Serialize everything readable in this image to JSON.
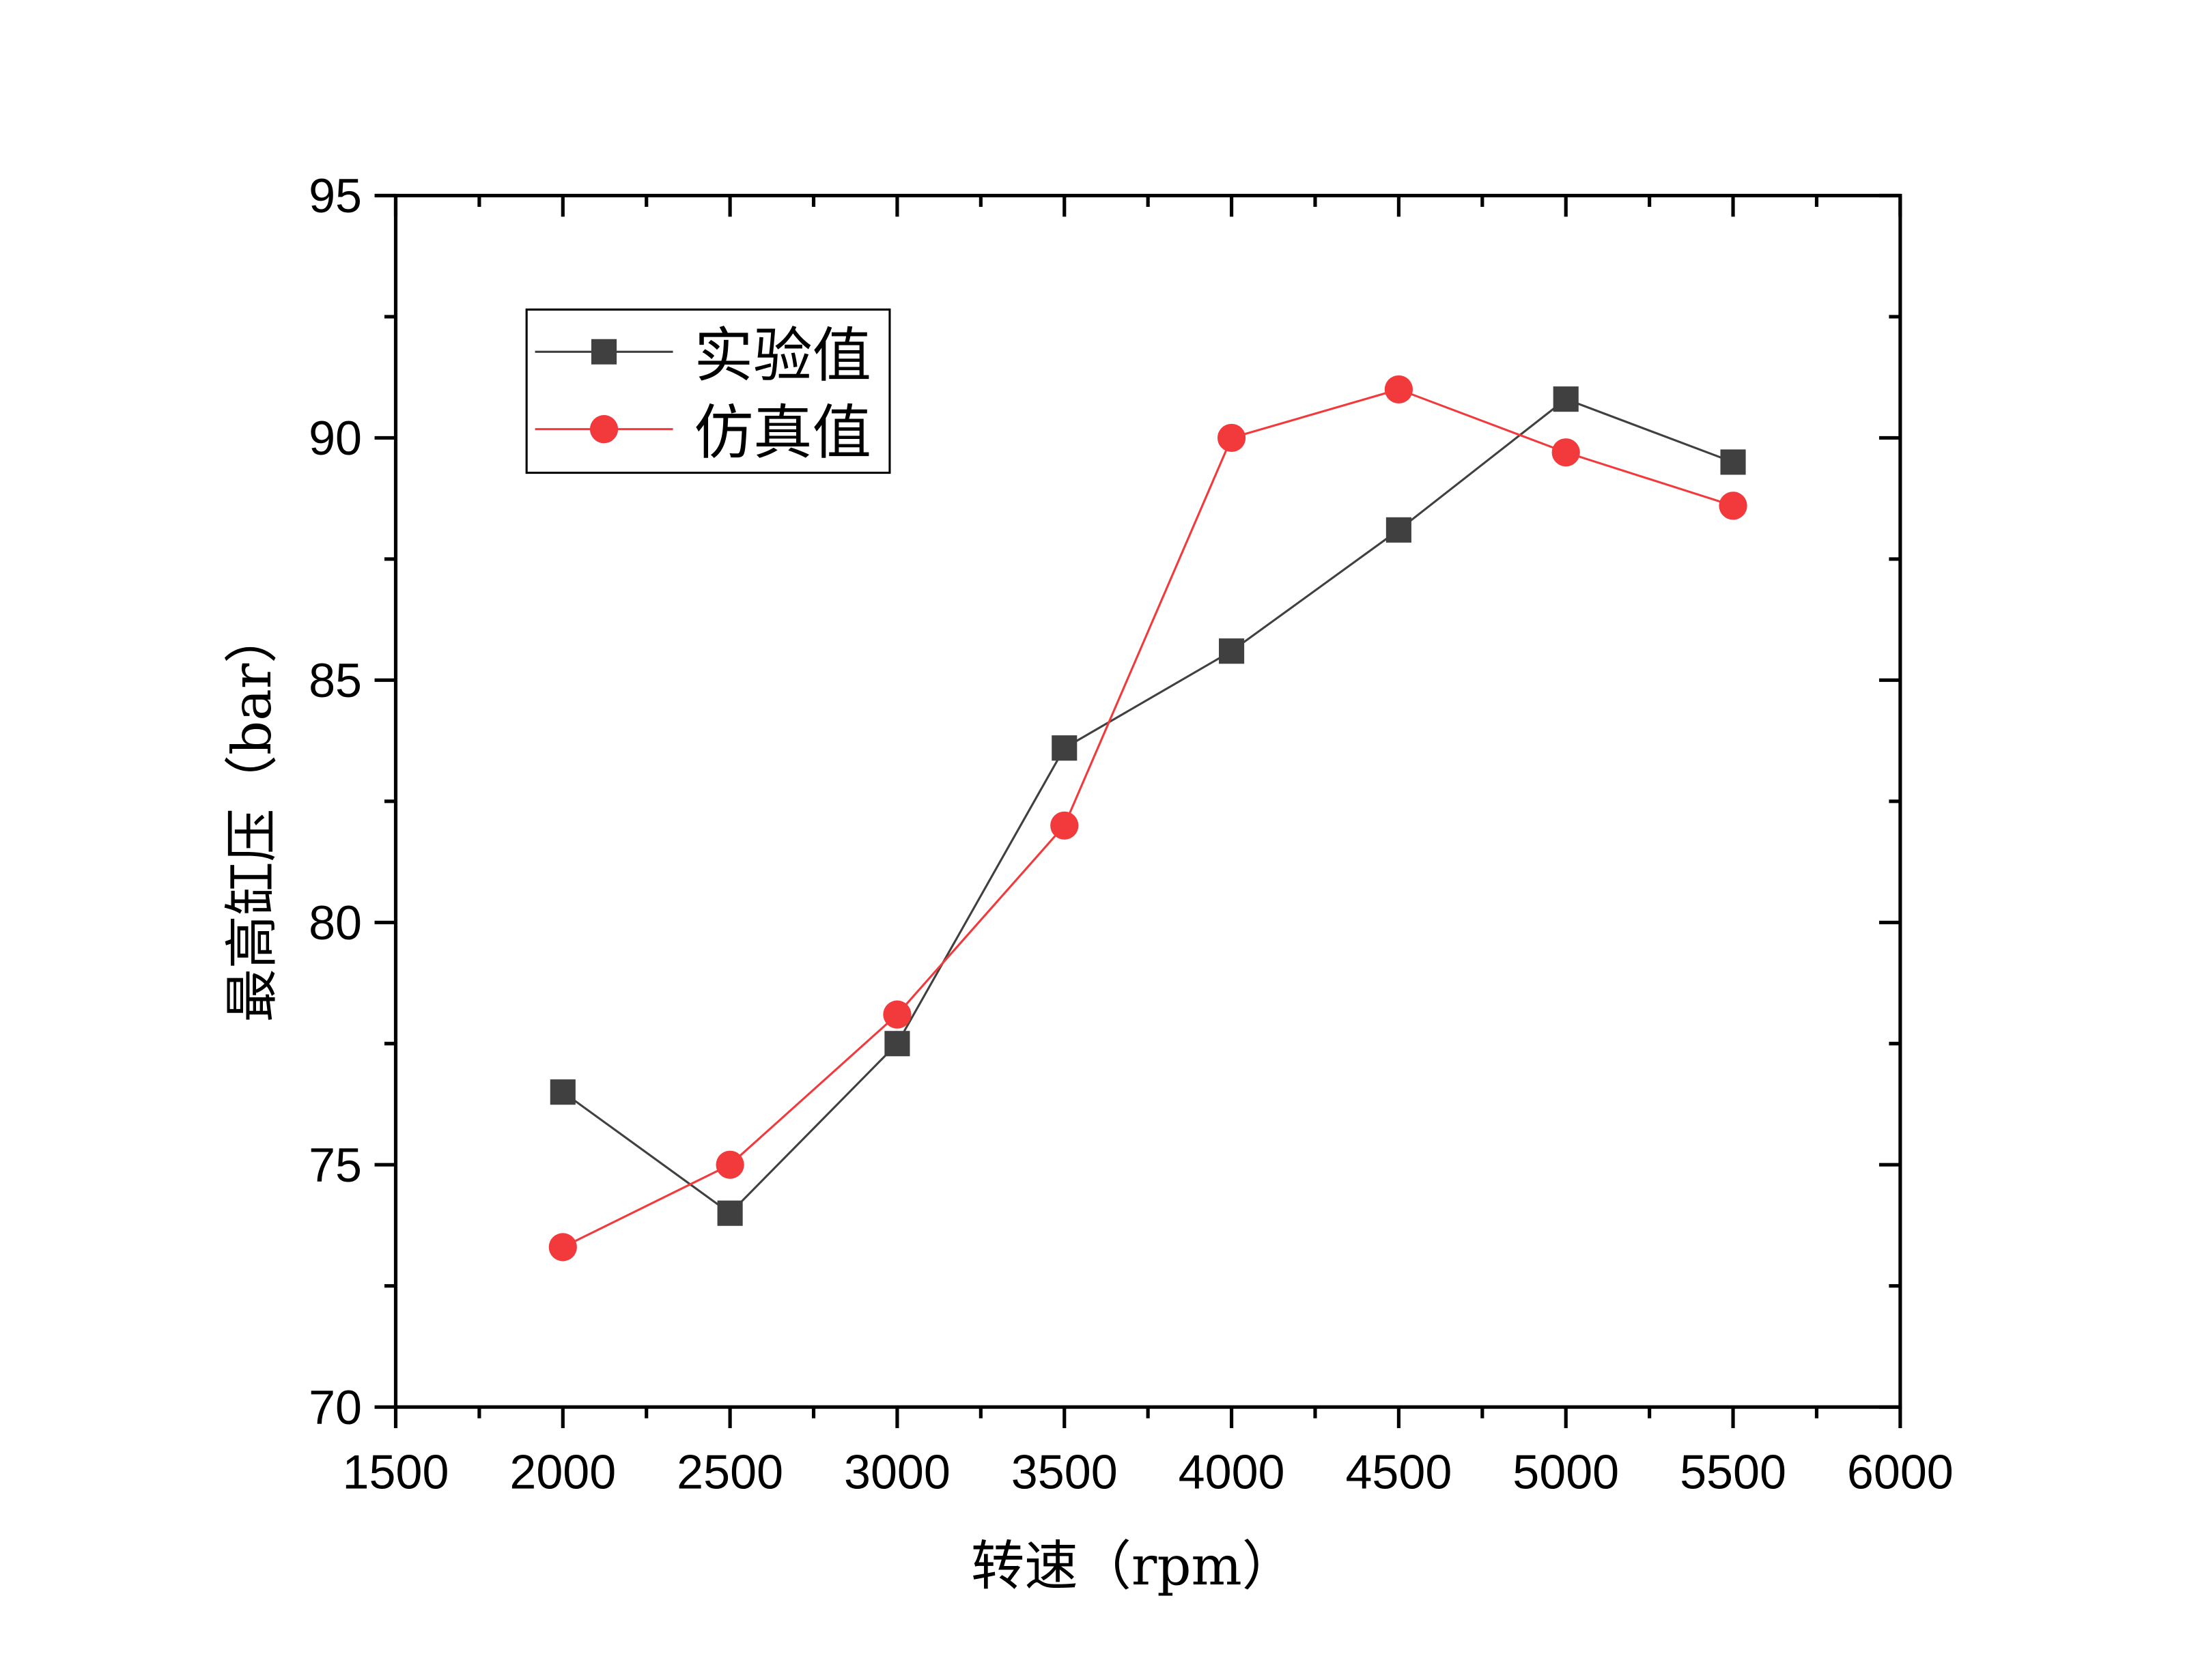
{
  "chart_data": {
    "type": "line",
    "title": "",
    "xlabel": "转速（rpm）",
    "ylabel": "最高缸压（bar）",
    "xlim": [
      1500,
      6000
    ],
    "ylim": [
      70,
      95
    ],
    "xticks": [
      1500,
      2000,
      2500,
      3000,
      3500,
      4000,
      4500,
      5000,
      5500,
      6000
    ],
    "yticks": [
      70,
      75,
      80,
      85,
      90,
      95
    ],
    "grid": false,
    "legend_position": "top-left",
    "x": [
      2000,
      2500,
      3000,
      3500,
      4000,
      4500,
      5000,
      5500
    ],
    "series": [
      {
        "name": "实验值",
        "marker": "square",
        "color": "#404040",
        "values": [
          76.5,
          74.0,
          77.5,
          83.6,
          85.6,
          88.1,
          90.8,
          89.5
        ]
      },
      {
        "name": "仿真值",
        "marker": "circle",
        "color": "#f23a3c",
        "values": [
          73.3,
          75.0,
          78.1,
          82.0,
          90.0,
          91.0,
          89.7,
          88.6
        ]
      }
    ]
  }
}
